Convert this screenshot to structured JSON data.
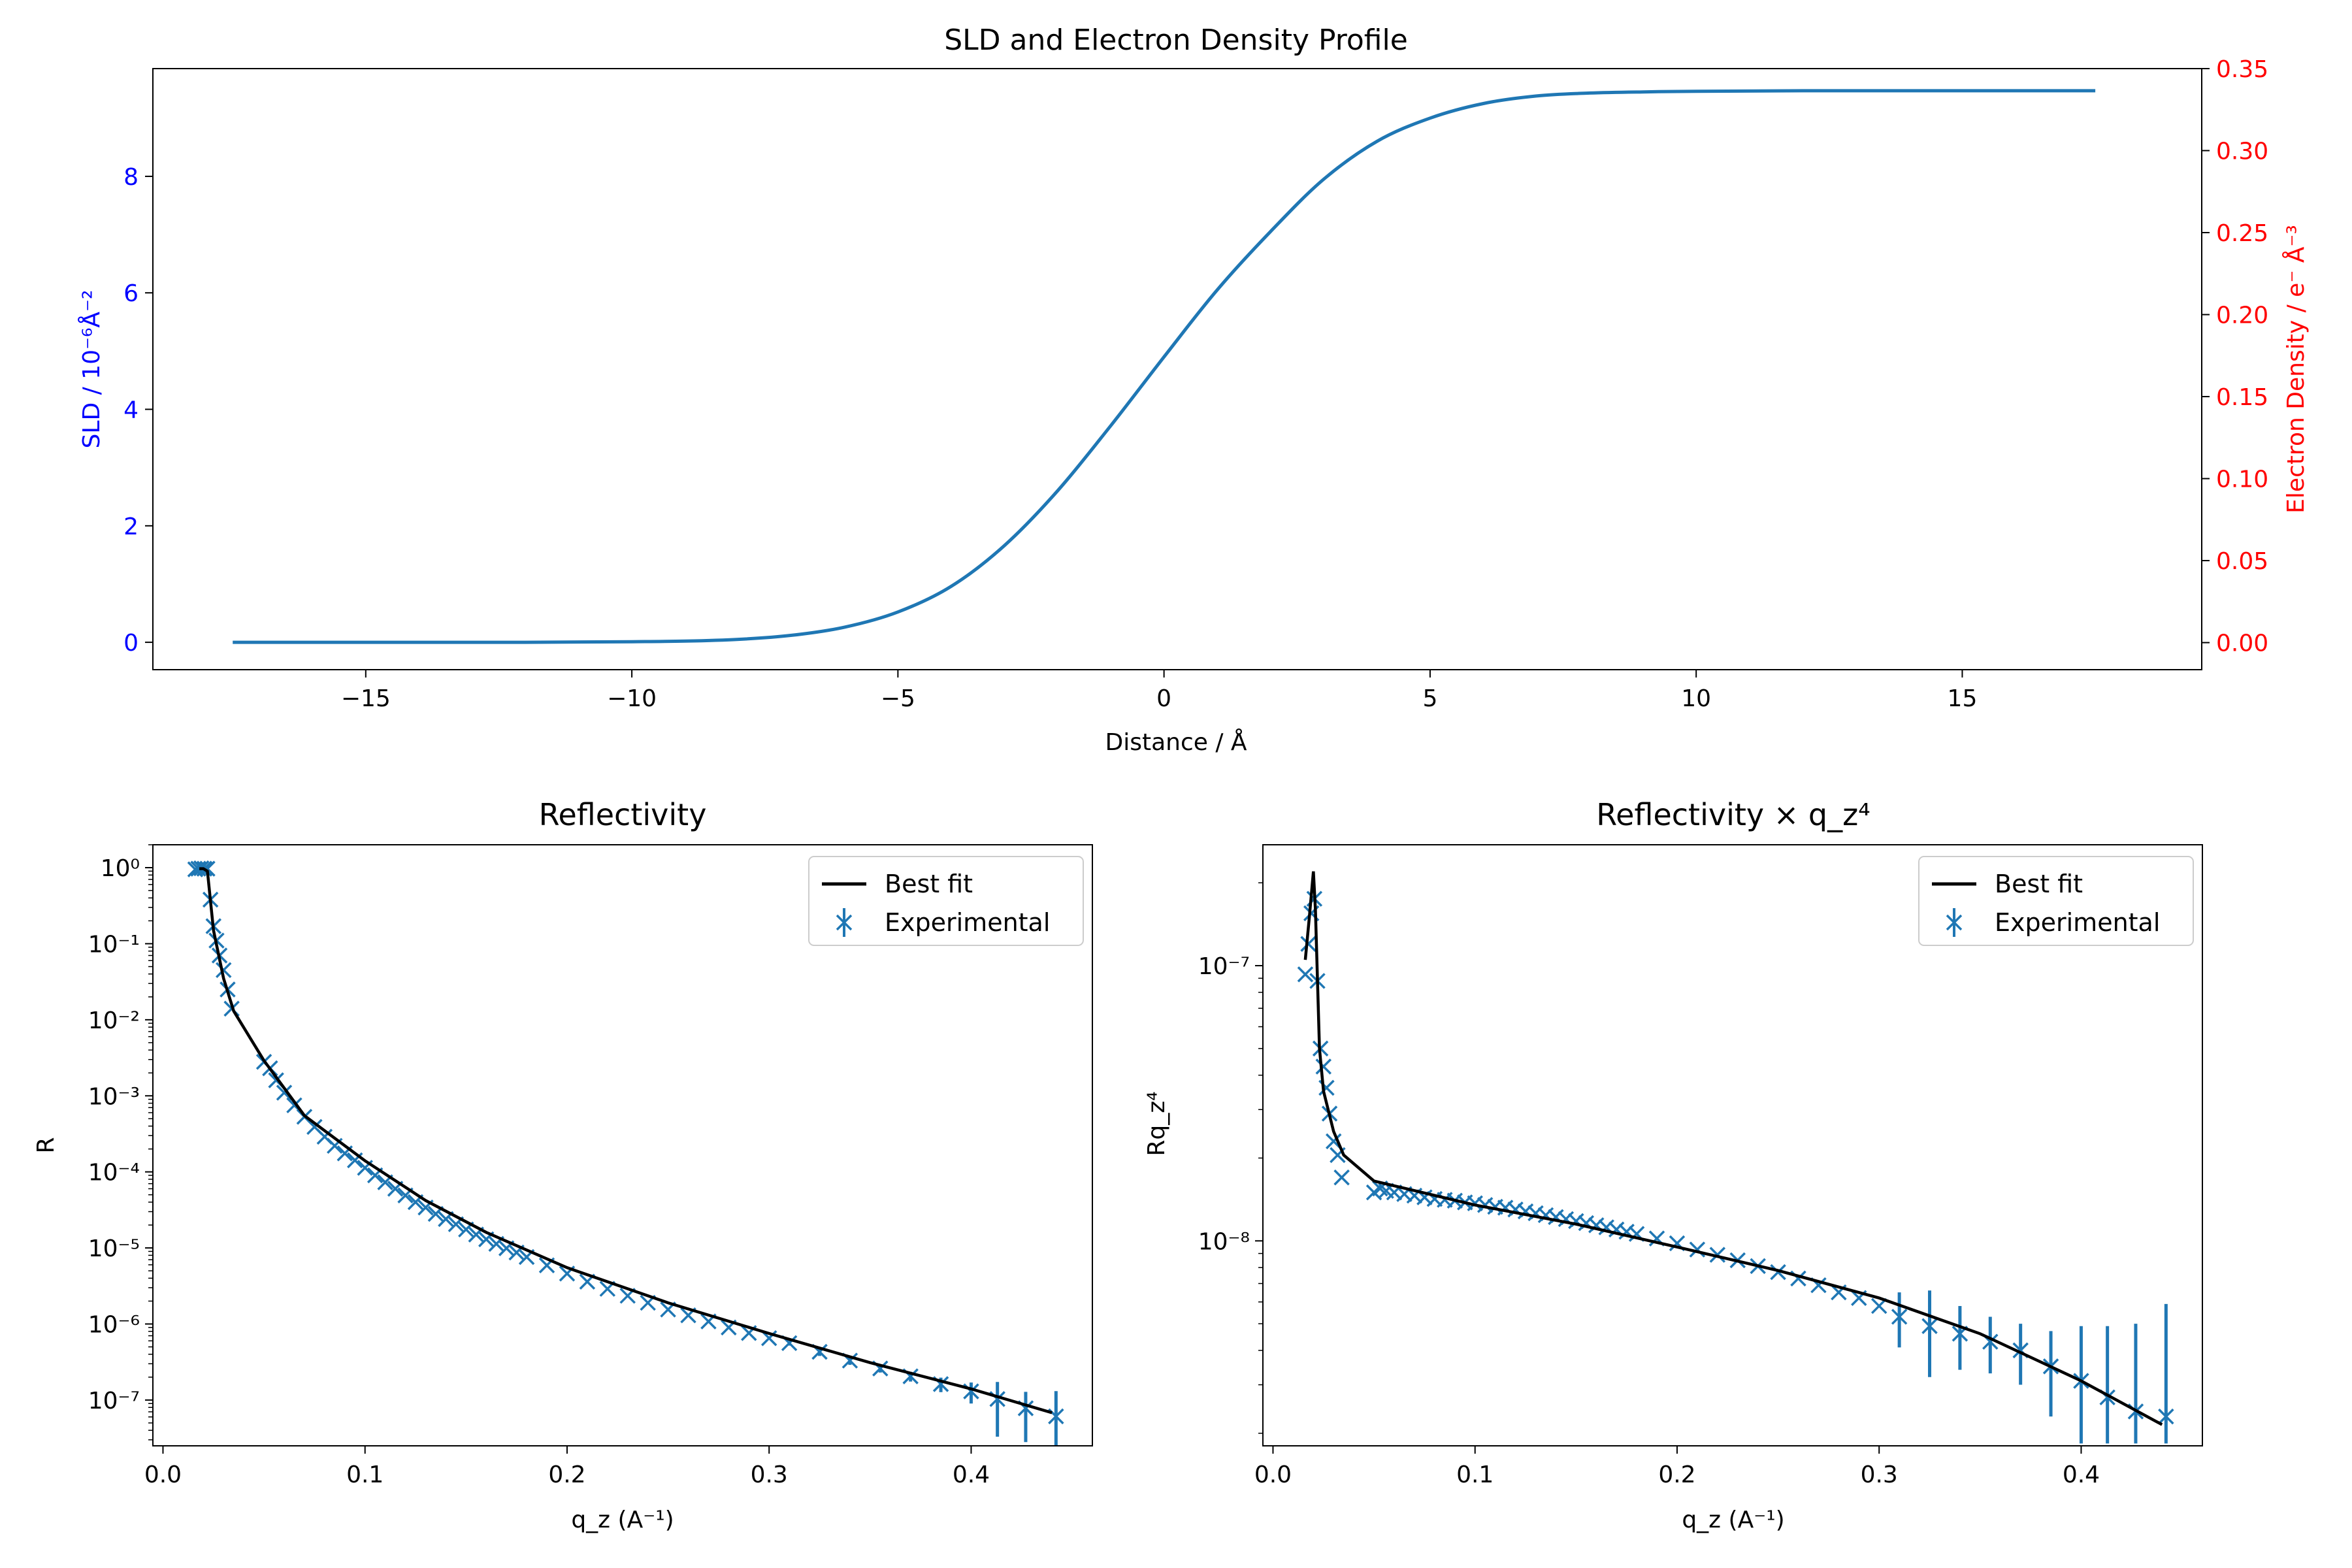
{
  "chart_data": [
    {
      "type": "line",
      "title": "SLD and Electron Density Profile",
      "xlabel": "Distance / Å",
      "ylabel_left": "SLD / 10⁻⁶Å⁻²",
      "ylabel_right": "Electron Density / e⁻ Å⁻³",
      "left_axis_color": "#0000ff",
      "right_axis_color": "#ff0000",
      "line_color": "#1f77b4",
      "xlim": [
        -19,
        19.5
      ],
      "ylim_left": [
        -0.47,
        9.85
      ],
      "ylim_right": [
        -0.0165,
        0.35
      ],
      "xticks": [
        "−15",
        "−10",
        "−5",
        "0",
        "5",
        "10",
        "15"
      ],
      "yticks_left": [
        "0",
        "2",
        "4",
        "6",
        "8"
      ],
      "yticks_right": [
        "0.00",
        "0.05",
        "0.10",
        "0.15",
        "0.20",
        "0.25",
        "0.30",
        "0.35"
      ],
      "series": [
        {
          "x": [
            -17.5,
            -15,
            -12,
            -10,
            -9,
            -8,
            -7,
            -6,
            -5,
            -4,
            -3,
            -2,
            -1,
            0,
            1,
            2,
            3,
            4,
            5,
            6,
            7,
            8,
            9,
            10,
            12,
            15,
            17.5
          ],
          "values": [
            0,
            0,
            0,
            0.01,
            0.02,
            0.05,
            0.12,
            0.26,
            0.52,
            0.96,
            1.66,
            2.6,
            3.72,
            4.9,
            6.05,
            7.05,
            7.95,
            8.6,
            9.0,
            9.25,
            9.38,
            9.43,
            9.45,
            9.46,
            9.47,
            9.47,
            9.47
          ]
        }
      ]
    },
    {
      "type": "line",
      "title": "Reflectivity",
      "xlabel": "q_z (A⁻¹)",
      "ylabel": "R",
      "yscale": "log",
      "xlim": [
        -0.005,
        0.46
      ],
      "ylim": [
        2.5e-08,
        2.0
      ],
      "xticks": [
        "0.0",
        "0.1",
        "0.2",
        "0.3",
        "0.4"
      ],
      "yticks": [
        "10⁰",
        "10⁻¹",
        "10⁻²",
        "10⁻³",
        "10⁻⁴",
        "10⁻⁵",
        "10⁻⁶",
        "10⁻⁷"
      ],
      "legend": {
        "placement": "top-right",
        "entries": [
          "Best fit",
          "Experimental"
        ]
      },
      "series": [
        {
          "name": "Best fit",
          "x": [
            0.018,
            0.02,
            0.022,
            0.025,
            0.03,
            0.035,
            0.05,
            0.07,
            0.1,
            0.13,
            0.16,
            0.2,
            0.25,
            0.3,
            0.35,
            0.4,
            0.44
          ],
          "values": [
            0.97,
            0.97,
            0.9,
            0.15,
            0.035,
            0.013,
            0.0029,
            0.00055,
            0.00014,
            4.2e-05,
            1.6e-05,
            5.5e-06,
            1.9e-06,
            7.5e-07,
            3.1e-07,
            1.4e-07,
            6.8e-08
          ]
        },
        {
          "name": "Experimental",
          "x": [
            0.016,
            0.0175,
            0.019,
            0.0205,
            0.022,
            0.0235,
            0.025,
            0.0265,
            0.028,
            0.03,
            0.032,
            0.034,
            0.05,
            0.053,
            0.056,
            0.06,
            0.065,
            0.07,
            0.075,
            0.08,
            0.085,
            0.09,
            0.095,
            0.1,
            0.105,
            0.11,
            0.115,
            0.12,
            0.125,
            0.13,
            0.135,
            0.14,
            0.145,
            0.15,
            0.155,
            0.16,
            0.165,
            0.17,
            0.175,
            0.18,
            0.19,
            0.2,
            0.21,
            0.22,
            0.23,
            0.24,
            0.25,
            0.26,
            0.27,
            0.28,
            0.29,
            0.3,
            0.31,
            0.325,
            0.34,
            0.355,
            0.37,
            0.385,
            0.4,
            0.413,
            0.427,
            0.442
          ],
          "values": [
            0.95,
            0.97,
            0.98,
            0.97,
            0.97,
            0.38,
            0.17,
            0.11,
            0.07,
            0.045,
            0.025,
            0.014,
            0.0028,
            0.0023,
            0.0016,
            0.0011,
            0.00075,
            0.00053,
            0.00039,
            0.00029,
            0.00022,
            0.000175,
            0.000142,
            0.000113,
            9e-05,
            7.3e-05,
            6e-05,
            4.9e-05,
            4e-05,
            3.4e-05,
            2.8e-05,
            2.4e-05,
            2.05e-05,
            1.75e-05,
            1.5e-05,
            1.3e-05,
            1.13e-05,
            9.9e-06,
            8.7e-06,
            7.6e-06,
            5.9e-06,
            4.6e-06,
            3.6e-06,
            2.9e-06,
            2.35e-06,
            1.9e-06,
            1.55e-06,
            1.3e-06,
            1.08e-06,
            9e-07,
            7.6e-07,
            6.5e-07,
            5.6e-07,
            4.3e-07,
            3.3e-07,
            2.6e-07,
            2.05e-07,
            1.62e-07,
            1.3e-07,
            1.03e-07,
            7.8e-08,
            6.1e-08
          ],
          "errors": [
            0,
            0,
            0,
            0,
            0,
            0,
            0,
            0,
            0,
            0,
            0,
            0,
            0,
            0,
            0,
            0,
            0,
            0,
            0,
            0,
            0,
            0,
            0,
            0,
            0,
            0,
            0,
            0,
            0,
            0,
            0,
            0,
            0,
            0,
            0,
            0,
            0,
            0,
            0,
            0,
            0,
            0,
            0,
            0,
            0,
            0,
            0,
            0,
            0,
            0,
            0,
            0,
            4e-08,
            5e-08,
            4e-08,
            3e-08,
            3e-08,
            3.5e-08,
            4e-08,
            7e-08,
            5e-08,
            7e-08
          ]
        }
      ]
    },
    {
      "type": "line",
      "title": "Reflectivity × q_z⁴",
      "xlabel": "q_z (A⁻¹)",
      "ylabel": "Rq_z⁴",
      "yscale": "log",
      "xlim": [
        -0.005,
        0.46
      ],
      "ylim": [
        1.8e-09,
        2.75e-07
      ],
      "xticks": [
        "0.0",
        "0.1",
        "0.2",
        "0.3",
        "0.4"
      ],
      "yticks": [
        "10⁻⁷",
        "10⁻⁸"
      ],
      "legend": {
        "placement": "top-right",
        "entries": [
          "Best fit",
          "Experimental"
        ]
      },
      "series": [
        {
          "name": "Best fit",
          "x": [
            0.016,
            0.018,
            0.02,
            0.021,
            0.023,
            0.025,
            0.03,
            0.035,
            0.05,
            0.1,
            0.15,
            0.2,
            0.25,
            0.3,
            0.35,
            0.4,
            0.44
          ],
          "values": [
            1.05e-07,
            1.5e-07,
            2.2e-07,
            1.6e-07,
            5e-08,
            3.5e-08,
            2.5e-08,
            2.05e-08,
            1.65e-08,
            1.35e-08,
            1.15e-08,
            9.5e-09,
            7.8e-09,
            6.2e-09,
            4.6e-09,
            3.1e-09,
            2.15e-09
          ]
        },
        {
          "name": "Experimental",
          "x": [
            0.016,
            0.0175,
            0.019,
            0.0205,
            0.022,
            0.0235,
            0.025,
            0.0265,
            0.028,
            0.03,
            0.032,
            0.034,
            0.05,
            0.053,
            0.056,
            0.06,
            0.065,
            0.07,
            0.075,
            0.08,
            0.085,
            0.09,
            0.095,
            0.1,
            0.105,
            0.11,
            0.115,
            0.12,
            0.125,
            0.13,
            0.135,
            0.14,
            0.145,
            0.15,
            0.155,
            0.16,
            0.165,
            0.17,
            0.175,
            0.18,
            0.19,
            0.2,
            0.21,
            0.22,
            0.23,
            0.24,
            0.25,
            0.26,
            0.27,
            0.28,
            0.29,
            0.3,
            0.31,
            0.325,
            0.34,
            0.355,
            0.37,
            0.385,
            0.4,
            0.413,
            0.427,
            0.442
          ],
          "values": [
            9.3e-08,
            1.2e-07,
            1.55e-07,
            1.75e-07,
            8.8e-08,
            5e-08,
            4.3e-08,
            3.6e-08,
            2.9e-08,
            2.3e-08,
            2.05e-08,
            1.7e-08,
            1.5e-08,
            1.55e-08,
            1.52e-08,
            1.5e-08,
            1.48e-08,
            1.46e-08,
            1.44e-08,
            1.42e-08,
            1.41e-08,
            1.4e-08,
            1.38e-08,
            1.37e-08,
            1.35e-08,
            1.33e-08,
            1.32e-08,
            1.3e-08,
            1.28e-08,
            1.26e-08,
            1.24e-08,
            1.22e-08,
            1.2e-08,
            1.18e-08,
            1.16e-08,
            1.14e-08,
            1.12e-08,
            1.1e-08,
            1.08e-08,
            1.06e-08,
            1.02e-08,
            9.8e-09,
            9.3e-09,
            8.9e-09,
            8.5e-09,
            8.1e-09,
            7.7e-09,
            7.3e-09,
            6.9e-09,
            6.5e-09,
            6.2e-09,
            5.8e-09,
            5.3e-09,
            4.9e-09,
            4.6e-09,
            4.3e-09,
            4e-09,
            3.5e-09,
            3.1e-09,
            2.7e-09,
            2.4e-09,
            2.3e-09
          ],
          "errors": [
            0,
            0,
            0,
            0,
            0,
            0,
            0,
            0,
            0,
            0,
            0,
            0,
            0,
            0,
            0,
            0,
            0,
            0,
            0,
            0,
            0,
            0,
            0,
            0,
            0,
            0,
            0,
            0,
            0,
            0,
            0,
            0,
            0,
            0,
            0,
            0,
            0,
            0,
            0,
            0,
            0,
            0,
            0,
            0,
            0,
            0,
            0,
            0,
            0,
            0,
            0,
            0,
            1.2e-09,
            1.7e-09,
            1.2e-09,
            1e-09,
            1e-09,
            1.2e-09,
            1.8e-09,
            2.2e-09,
            2.6e-09,
            3.6e-09
          ]
        }
      ]
    }
  ]
}
